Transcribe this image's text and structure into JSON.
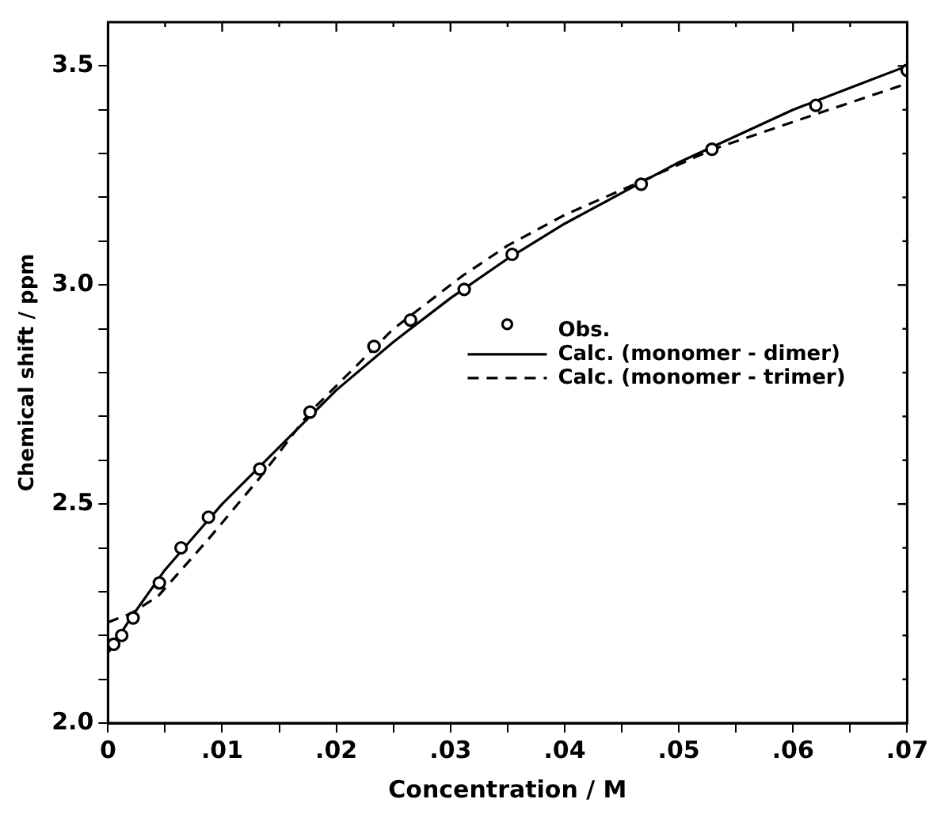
{
  "chart_data": {
    "type": "scatter",
    "xlabel": "Concentration / M",
    "ylabel": "Chemical shift / ppm",
    "xlim": [
      0,
      0.07
    ],
    "ylim": [
      2.0,
      3.6
    ],
    "xticks": [
      {
        "value": 0,
        "label": "0"
      },
      {
        "value": 0.005,
        "label": null
      },
      {
        "value": 0.01,
        "label": ".01"
      },
      {
        "value": 0.015,
        "label": null
      },
      {
        "value": 0.02,
        "label": ".02"
      },
      {
        "value": 0.025,
        "label": null
      },
      {
        "value": 0.03,
        "label": ".03"
      },
      {
        "value": 0.035,
        "label": null
      },
      {
        "value": 0.04,
        "label": ".04"
      },
      {
        "value": 0.045,
        "label": null
      },
      {
        "value": 0.05,
        "label": ".05"
      },
      {
        "value": 0.055,
        "label": null
      },
      {
        "value": 0.06,
        "label": ".06"
      },
      {
        "value": 0.065,
        "label": null
      },
      {
        "value": 0.07,
        "label": ".07"
      }
    ],
    "yticks": [
      {
        "value": 2.0,
        "label": "2.0"
      },
      {
        "value": 2.1,
        "label": null
      },
      {
        "value": 2.2,
        "label": null
      },
      {
        "value": 2.3,
        "label": null
      },
      {
        "value": 2.4,
        "label": null
      },
      {
        "value": 2.5,
        "label": "2.5"
      },
      {
        "value": 2.6,
        "label": null
      },
      {
        "value": 2.7,
        "label": null
      },
      {
        "value": 2.8,
        "label": null
      },
      {
        "value": 2.9,
        "label": null
      },
      {
        "value": 3.0,
        "label": "3.0"
      },
      {
        "value": 3.1,
        "label": null
      },
      {
        "value": 3.2,
        "label": null
      },
      {
        "value": 3.3,
        "label": null
      },
      {
        "value": 3.4,
        "label": null
      },
      {
        "value": 3.5,
        "label": "3.5"
      }
    ],
    "grid": false,
    "legend": "right",
    "series": [
      {
        "name": "Obs.",
        "type": "scatter",
        "marker": "circle",
        "color": "#000000",
        "x": [
          0.0005,
          0.0012,
          0.0022,
          0.0045,
          0.0064,
          0.0088,
          0.0133,
          0.0177,
          0.0233,
          0.0265,
          0.0312,
          0.0354,
          0.0467,
          0.0529,
          0.062,
          0.07
        ],
        "values": [
          2.18,
          2.2,
          2.24,
          2.32,
          2.4,
          2.47,
          2.58,
          2.71,
          2.86,
          2.92,
          2.99,
          3.07,
          3.23,
          3.31,
          3.41,
          3.49
        ]
      },
      {
        "name": "Calc. (monomer - dimer)",
        "type": "line",
        "line_style": "solid",
        "marker": "none",
        "color": "#000000",
        "x": [
          0,
          0.002,
          0.005,
          0.01,
          0.015,
          0.02,
          0.025,
          0.03,
          0.035,
          0.04,
          0.045,
          0.05,
          0.055,
          0.06,
          0.065,
          0.07
        ],
        "values": [
          2.16,
          2.24,
          2.35,
          2.5,
          2.63,
          2.76,
          2.87,
          2.97,
          3.06,
          3.14,
          3.21,
          3.28,
          3.34,
          3.4,
          3.45,
          3.5
        ]
      },
      {
        "name": "Calc. (monomer - trimer)",
        "type": "line",
        "line_style": "dashed",
        "marker": "none",
        "color": "#000000",
        "x": [
          0,
          0.002,
          0.0044,
          0.0088,
          0.0133,
          0.0177,
          0.025,
          0.031,
          0.035,
          0.04,
          0.047,
          0.053,
          0.062,
          0.07
        ],
        "values": [
          2.23,
          2.25,
          2.29,
          2.42,
          2.56,
          2.71,
          2.9,
          3.02,
          3.09,
          3.16,
          3.24,
          3.31,
          3.39,
          3.46
        ]
      }
    ]
  }
}
